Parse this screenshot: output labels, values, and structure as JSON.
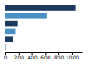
{
  "chart_data": {
    "type": "bar",
    "orientation": "horizontal",
    "categories": [
      null,
      null,
      null,
      null,
      null,
      null
    ],
    "values": [
      1050,
      620,
      185,
      155,
      120,
      8
    ],
    "colors": [
      "#1c3a5e",
      "#4a90c4",
      "#1c3a5e",
      "#4a90c4",
      "#1c3a5e",
      "#4a90c4"
    ],
    "xlim": [
      0,
      1150
    ],
    "xticks": [
      0,
      200,
      400,
      600,
      800,
      1000
    ],
    "tick_labels": "x"
  }
}
